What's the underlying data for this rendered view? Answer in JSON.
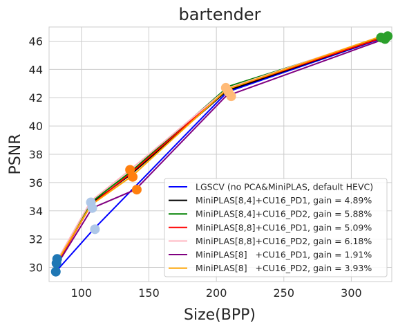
{
  "chart_data": {
    "type": "line",
    "title": "bartender",
    "xlabel": "Size(BPP)",
    "ylabel": "PSNR",
    "xlim": [
      76,
      330
    ],
    "ylim": [
      29.0,
      47.0
    ],
    "xticks": [
      100,
      150,
      200,
      250,
      300
    ],
    "yticks": [
      30,
      32,
      34,
      36,
      38,
      40,
      42,
      44,
      46
    ],
    "grid": true,
    "legend_position": "bottom-right",
    "series": [
      {
        "name": "LGSCV (no PCA&MiniPLAS, default HEVC)",
        "color": "#0000ff",
        "points": [
          [
            81,
            29.7
          ],
          [
            109,
            32.7
          ],
          [
            208,
            42.4
          ],
          [
            326,
            46.3
          ]
        ]
      },
      {
        "name": "MiniPLAS[8,4]+CU16_PD1, gain = 4.89%",
        "color": "#000000",
        "points": [
          [
            82,
            30.3
          ],
          [
            107,
            34.5
          ],
          [
            137,
            36.6
          ],
          [
            208,
            42.5
          ],
          [
            325,
            46.3
          ]
        ]
      },
      {
        "name": "MiniPLAS[8,4]+CU16_PD2, gain = 5.88%",
        "color": "#008000",
        "points": [
          [
            82,
            30.4
          ],
          [
            107,
            34.6
          ],
          [
            137,
            36.8
          ],
          [
            209,
            42.8
          ],
          [
            324,
            46.3
          ]
        ]
      },
      {
        "name": "MiniPLAS[8,8]+CU16_PD1, gain = 5.09%",
        "color": "#ff0000",
        "points": [
          [
            82,
            30.3
          ],
          [
            107,
            34.4
          ],
          [
            137,
            36.7
          ],
          [
            208,
            42.6
          ],
          [
            325,
            46.3
          ]
        ]
      },
      {
        "name": "MiniPLAS[8,8]+CU16_PD2, gain = 6.18%",
        "color": "#ffb6c1",
        "points": [
          [
            82,
            30.5
          ],
          [
            107,
            34.7
          ],
          [
            136,
            36.9
          ],
          [
            209,
            42.7
          ],
          [
            324,
            46.4
          ]
        ]
      },
      {
        "name": "MiniPLAS[8]   +CU16_PD1, gain = 1.91%",
        "color": "#800080",
        "points": [
          [
            82,
            30.2
          ],
          [
            108,
            34.2
          ],
          [
            140,
            35.5
          ],
          [
            207,
            42.1
          ],
          [
            326,
            46.2
          ]
        ]
      },
      {
        "name": "MiniPLAS[8]   +CU16_PD2, gain = 3.93%",
        "color": "#ffa500",
        "points": [
          [
            82,
            30.4
          ],
          [
            107,
            34.4
          ],
          [
            138,
            36.5
          ],
          [
            208,
            42.6
          ],
          [
            324,
            46.4
          ]
        ]
      }
    ],
    "markers": [
      {
        "x": 81,
        "y": 29.7,
        "color": "#1f77b4"
      },
      {
        "x": 81.5,
        "y": 30.3,
        "color": "#1f77b4"
      },
      {
        "x": 82,
        "y": 30.6,
        "color": "#1f77b4"
      },
      {
        "x": 107,
        "y": 34.6,
        "color": "#aec7e8"
      },
      {
        "x": 108,
        "y": 34.2,
        "color": "#aec7e8"
      },
      {
        "x": 110,
        "y": 32.7,
        "color": "#aec7e8"
      },
      {
        "x": 136,
        "y": 36.9,
        "color": "#ff7f0e"
      },
      {
        "x": 138,
        "y": 36.4,
        "color": "#ff7f0e"
      },
      {
        "x": 141,
        "y": 35.5,
        "color": "#ff7f0e"
      },
      {
        "x": 207,
        "y": 42.7,
        "color": "#ffbb78"
      },
      {
        "x": 209,
        "y": 42.4,
        "color": "#ffbb78"
      },
      {
        "x": 211,
        "y": 42.1,
        "color": "#ffbb78"
      },
      {
        "x": 322,
        "y": 46.25,
        "color": "#2ca02c"
      },
      {
        "x": 325,
        "y": 46.15,
        "color": "#2ca02c"
      },
      {
        "x": 327,
        "y": 46.35,
        "color": "#2ca02c"
      }
    ]
  }
}
